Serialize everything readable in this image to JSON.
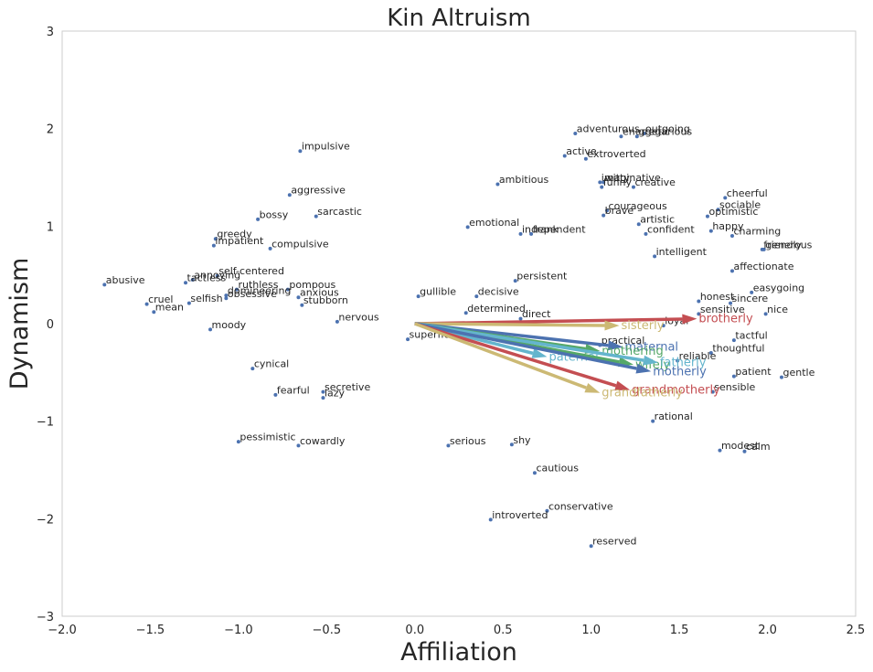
{
  "chart_data": {
    "type": "scatter",
    "title": "Kin Altruism",
    "xlabel": "Affiliation",
    "ylabel": "Dynamism",
    "xlim": [
      -2.0,
      2.5
    ],
    "ylim": [
      -3,
      3
    ],
    "xticks": [
      "−2.0",
      "−1.5",
      "−1.0",
      "−0.5",
      "0.0",
      "0.5",
      "1.0",
      "1.5",
      "2.0",
      "2.5"
    ],
    "yticks": [
      "−3",
      "−2",
      "−1",
      "0",
      "1",
      "2",
      "3"
    ],
    "grid": false,
    "point_color": "#4c72b0",
    "points": [
      {
        "label": "adventurous",
        "x": 0.91,
        "y": 1.95
      },
      {
        "label": "outgoing",
        "x": 1.3,
        "y": 1.95
      },
      {
        "label": "energetic",
        "x": 1.17,
        "y": 1.92
      },
      {
        "label": "gregarious",
        "x": 1.26,
        "y": 1.92
      },
      {
        "label": "impulsive",
        "x": -0.65,
        "y": 1.77
      },
      {
        "label": "active",
        "x": 0.85,
        "y": 1.72
      },
      {
        "label": "extroverted",
        "x": 0.97,
        "y": 1.69
      },
      {
        "label": "ambitious",
        "x": 0.47,
        "y": 1.43
      },
      {
        "label": "imaginative",
        "x": 1.05,
        "y": 1.45
      },
      {
        "label": "witty",
        "x": 1.07,
        "y": 1.45
      },
      {
        "label": "creative",
        "x": 1.24,
        "y": 1.4
      },
      {
        "label": "funny",
        "x": 1.06,
        "y": 1.4
      },
      {
        "label": "aggressive",
        "x": -0.71,
        "y": 1.32
      },
      {
        "label": "cheerful",
        "x": 1.76,
        "y": 1.29
      },
      {
        "label": "sociable",
        "x": 1.72,
        "y": 1.17
      },
      {
        "label": "courageous",
        "x": 1.09,
        "y": 1.16
      },
      {
        "label": "brave",
        "x": 1.07,
        "y": 1.11
      },
      {
        "label": "optimistic",
        "x": 1.66,
        "y": 1.1
      },
      {
        "label": "sarcastic",
        "x": -0.56,
        "y": 1.1
      },
      {
        "label": "bossy",
        "x": -0.89,
        "y": 1.07
      },
      {
        "label": "artistic",
        "x": 1.27,
        "y": 1.02
      },
      {
        "label": "emotional",
        "x": 0.3,
        "y": 0.99
      },
      {
        "label": "happy",
        "x": 1.68,
        "y": 0.95
      },
      {
        "label": "independent",
        "x": 0.6,
        "y": 0.92
      },
      {
        "label": "frank",
        "x": 0.66,
        "y": 0.92
      },
      {
        "label": "confident",
        "x": 1.31,
        "y": 0.92
      },
      {
        "label": "charming",
        "x": 1.8,
        "y": 0.9
      },
      {
        "label": "greedy",
        "x": -1.13,
        "y": 0.87
      },
      {
        "label": "impatient",
        "x": -1.14,
        "y": 0.8
      },
      {
        "label": "compulsive",
        "x": -0.82,
        "y": 0.77
      },
      {
        "label": "generous",
        "x": 1.98,
        "y": 0.76
      },
      {
        "label": "friendly",
        "x": 1.97,
        "y": 0.76
      },
      {
        "label": "intelligent",
        "x": 1.36,
        "y": 0.69
      },
      {
        "label": "affectionate",
        "x": 1.8,
        "y": 0.54
      },
      {
        "label": "self-centered",
        "x": -1.12,
        "y": 0.49
      },
      {
        "label": "annoying",
        "x": -1.26,
        "y": 0.45
      },
      {
        "label": "tactless",
        "x": -1.3,
        "y": 0.42
      },
      {
        "label": "persistent",
        "x": 0.57,
        "y": 0.44
      },
      {
        "label": "abusive",
        "x": -1.76,
        "y": 0.4
      },
      {
        "label": "ruthless",
        "x": -1.01,
        "y": 0.35
      },
      {
        "label": "pompous",
        "x": -0.72,
        "y": 0.35
      },
      {
        "label": "easygoing",
        "x": 1.91,
        "y": 0.32
      },
      {
        "label": "domineering",
        "x": -1.07,
        "y": 0.29
      },
      {
        "label": "obsessive",
        "x": -1.07,
        "y": 0.26
      },
      {
        "label": "anxious",
        "x": -0.66,
        "y": 0.27
      },
      {
        "label": "gullible",
        "x": 0.02,
        "y": 0.28
      },
      {
        "label": "decisive",
        "x": 0.35,
        "y": 0.28
      },
      {
        "label": "honest",
        "x": 1.61,
        "y": 0.23
      },
      {
        "label": "sincere",
        "x": 1.79,
        "y": 0.21
      },
      {
        "label": "selfish",
        "x": -1.28,
        "y": 0.21
      },
      {
        "label": "cruel",
        "x": -1.52,
        "y": 0.2
      },
      {
        "label": "stubborn",
        "x": -0.64,
        "y": 0.19
      },
      {
        "label": "mean",
        "x": -1.48,
        "y": 0.12
      },
      {
        "label": "determined",
        "x": 0.29,
        "y": 0.11
      },
      {
        "label": "sensitive",
        "x": 1.61,
        "y": 0.1
      },
      {
        "label": "nice",
        "x": 1.99,
        "y": 0.1
      },
      {
        "label": "direct",
        "x": 0.6,
        "y": 0.05
      },
      {
        "label": "nervous",
        "x": -0.44,
        "y": 0.02
      },
      {
        "label": "loyal",
        "x": 1.41,
        "y": -0.02
      },
      {
        "label": "moody",
        "x": -1.16,
        "y": -0.06
      },
      {
        "label": "superficial",
        "x": -0.04,
        "y": -0.16
      },
      {
        "label": "tactful",
        "x": 1.81,
        "y": -0.17
      },
      {
        "label": "practical",
        "x": 1.05,
        "y": -0.22
      },
      {
        "label": "thoughtful",
        "x": 1.68,
        "y": -0.3
      },
      {
        "label": "reliable",
        "x": 1.49,
        "y": -0.38
      },
      {
        "label": "cynical",
        "x": -0.92,
        "y": -0.46
      },
      {
        "label": "patient",
        "x": 1.81,
        "y": -0.54
      },
      {
        "label": "gentle",
        "x": 2.08,
        "y": -0.55
      },
      {
        "label": "sensible",
        "x": 1.69,
        "y": -0.7
      },
      {
        "label": "secretive",
        "x": -0.52,
        "y": -0.7
      },
      {
        "label": "fearful",
        "x": -0.79,
        "y": -0.73
      },
      {
        "label": "lazy",
        "x": -0.52,
        "y": -0.76
      },
      {
        "label": "rational",
        "x": 1.35,
        "y": -1.0
      },
      {
        "label": "pessimistic",
        "x": -1.0,
        "y": -1.21
      },
      {
        "label": "cowardly",
        "x": -0.66,
        "y": -1.25
      },
      {
        "label": "serious",
        "x": 0.19,
        "y": -1.25
      },
      {
        "label": "shy",
        "x": 0.55,
        "y": -1.24
      },
      {
        "label": "modest",
        "x": 1.73,
        "y": -1.3
      },
      {
        "label": "calm",
        "x": 1.87,
        "y": -1.31
      },
      {
        "label": "cautious",
        "x": 0.68,
        "y": -1.53
      },
      {
        "label": "conservative",
        "x": 0.75,
        "y": -1.92
      },
      {
        "label": "introverted",
        "x": 0.43,
        "y": -2.01
      },
      {
        "label": "reserved",
        "x": 1.0,
        "y": -2.28
      }
    ],
    "vectors": [
      {
        "label": "brotherly",
        "x": 1.6,
        "y": 0.05,
        "color": "#c44e52"
      },
      {
        "label": "sisterly",
        "x": 1.16,
        "y": -0.02,
        "color": "#ccb974"
      },
      {
        "label": "maternal",
        "x": 1.18,
        "y": -0.24,
        "color": "#4c72b0"
      },
      {
        "label": "mothering",
        "x": 1.05,
        "y": -0.28,
        "color": "#55a868"
      },
      {
        "label": "paternal",
        "x": 0.75,
        "y": -0.34,
        "color": "#64b5cd"
      },
      {
        "label": "wifely",
        "x": 1.24,
        "y": -0.42,
        "color": "#55a868"
      },
      {
        "label": "fatherly",
        "x": 1.38,
        "y": -0.4,
        "color": "#64b5cd"
      },
      {
        "label": "motherly",
        "x": 1.34,
        "y": -0.49,
        "color": "#4c72b0"
      },
      {
        "label": "grandmotherly",
        "x": 1.22,
        "y": -0.68,
        "color": "#c44e52"
      },
      {
        "label": "grandfatherly",
        "x": 1.05,
        "y": -0.71,
        "color": "#ccb974"
      }
    ]
  }
}
